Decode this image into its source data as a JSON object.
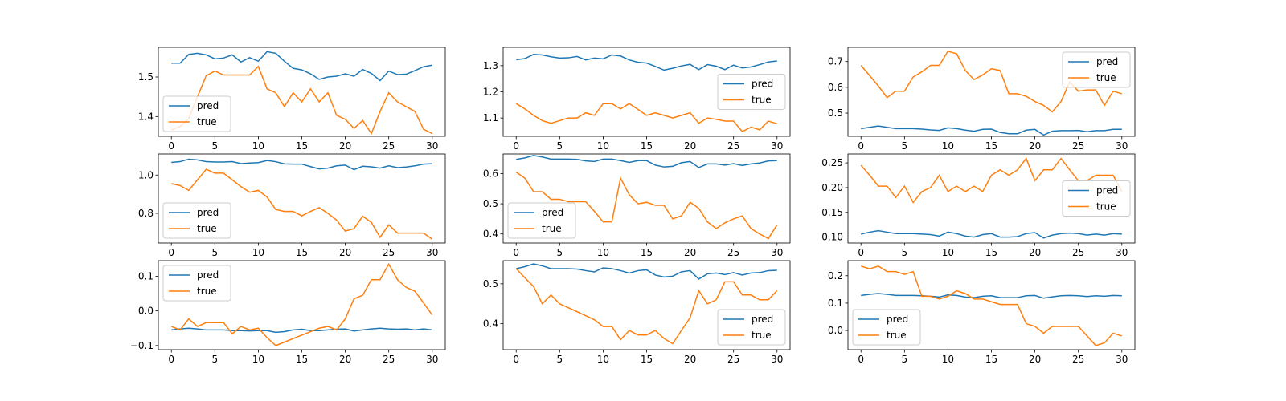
{
  "chart_data": [
    {
      "type": "line",
      "x": [
        0,
        1,
        2,
        3,
        4,
        5,
        6,
        7,
        8,
        9,
        10,
        11,
        12,
        13,
        14,
        15,
        16,
        17,
        18,
        19,
        20,
        21,
        22,
        23,
        24,
        25,
        26,
        27,
        28,
        29,
        30
      ],
      "ylim": [
        1.35,
        1.575
      ],
      "xticks": [
        0,
        5,
        10,
        15,
        20,
        25,
        30
      ],
      "yticks": [
        1.4,
        1.5
      ],
      "ytick_labels": [
        "1.4",
        "1.5"
      ],
      "legend_loc": "lower left",
      "series": [
        {
          "name": "pred",
          "color": "#1f77b4",
          "values": [
            1.535,
            1.535,
            1.557,
            1.56,
            1.556,
            1.546,
            1.548,
            1.556,
            1.538,
            1.549,
            1.54,
            1.564,
            1.56,
            1.54,
            1.522,
            1.518,
            1.508,
            1.494,
            1.5,
            1.502,
            1.508,
            1.502,
            1.519,
            1.509,
            1.491,
            1.515,
            1.506,
            1.507,
            1.516,
            1.526,
            1.53
          ]
        },
        {
          "name": "true",
          "color": "#ff7f0e",
          "values": [
            1.366,
            1.375,
            1.395,
            1.45,
            1.503,
            1.515,
            1.505,
            1.505,
            1.505,
            1.505,
            1.527,
            1.47,
            1.46,
            1.425,
            1.46,
            1.437,
            1.47,
            1.437,
            1.46,
            1.403,
            1.393,
            1.37,
            1.39,
            1.357,
            1.413,
            1.46,
            1.437,
            1.425,
            1.413,
            1.368,
            1.357
          ]
        }
      ]
    },
    {
      "type": "line",
      "x": [
        0,
        1,
        2,
        3,
        4,
        5,
        6,
        7,
        8,
        9,
        10,
        11,
        12,
        13,
        14,
        15,
        16,
        17,
        18,
        19,
        20,
        21,
        22,
        23,
        24,
        25,
        26,
        27,
        28,
        29,
        30
      ],
      "ylim": [
        1.03,
        1.37
      ],
      "xticks": [
        0,
        5,
        10,
        15,
        20,
        25,
        30
      ],
      "yticks": [
        1.1,
        1.2,
        1.3
      ],
      "ytick_labels": [
        "1.1",
        "1.2",
        "1.3"
      ],
      "legend_loc": "center right",
      "series": [
        {
          "name": "pred",
          "color": "#1f77b4",
          "values": [
            1.323,
            1.327,
            1.343,
            1.341,
            1.334,
            1.329,
            1.33,
            1.335,
            1.322,
            1.329,
            1.326,
            1.341,
            1.337,
            1.322,
            1.313,
            1.31,
            1.297,
            1.283,
            1.29,
            1.299,
            1.305,
            1.285,
            1.304,
            1.298,
            1.285,
            1.302,
            1.291,
            1.295,
            1.304,
            1.314,
            1.318
          ]
        },
        {
          "name": "true",
          "color": "#ff7f0e",
          "values": [
            1.155,
            1.135,
            1.11,
            1.09,
            1.08,
            1.09,
            1.1,
            1.1,
            1.12,
            1.11,
            1.155,
            1.155,
            1.135,
            1.155,
            1.133,
            1.11,
            1.12,
            1.11,
            1.1,
            1.11,
            1.12,
            1.08,
            1.1,
            1.095,
            1.088,
            1.088,
            1.048,
            1.065,
            1.055,
            1.088,
            1.078
          ]
        }
      ]
    },
    {
      "type": "line",
      "x": [
        0,
        1,
        2,
        3,
        4,
        5,
        6,
        7,
        8,
        9,
        10,
        11,
        12,
        13,
        14,
        15,
        16,
        17,
        18,
        19,
        20,
        21,
        22,
        23,
        24,
        25,
        26,
        27,
        28,
        29,
        30
      ],
      "ylim": [
        0.41,
        0.755
      ],
      "xticks": [
        0,
        5,
        10,
        15,
        20,
        25,
        30
      ],
      "yticks": [
        0.5,
        0.6,
        0.7
      ],
      "ytick_labels": [
        "0.5",
        "0.6",
        "0.7"
      ],
      "legend_loc": "upper right",
      "series": [
        {
          "name": "pred",
          "color": "#1f77b4",
          "values": [
            0.44,
            0.445,
            0.45,
            0.445,
            0.44,
            0.44,
            0.44,
            0.438,
            0.435,
            0.433,
            0.443,
            0.44,
            0.434,
            0.43,
            0.437,
            0.438,
            0.425,
            0.42,
            0.42,
            0.434,
            0.437,
            0.415,
            0.43,
            0.432,
            0.432,
            0.433,
            0.428,
            0.432,
            0.432,
            0.437,
            0.437
          ]
        },
        {
          "name": "true",
          "color": "#ff7f0e",
          "values": [
            0.685,
            0.645,
            0.605,
            0.56,
            0.585,
            0.585,
            0.64,
            0.66,
            0.685,
            0.685,
            0.74,
            0.73,
            0.665,
            0.63,
            0.648,
            0.672,
            0.665,
            0.575,
            0.575,
            0.565,
            0.545,
            0.53,
            0.505,
            0.545,
            0.62,
            0.585,
            0.59,
            0.59,
            0.53,
            0.585,
            0.575
          ]
        }
      ]
    },
    {
      "type": "line",
      "x": [
        0,
        1,
        2,
        3,
        4,
        5,
        6,
        7,
        8,
        9,
        10,
        11,
        12,
        13,
        14,
        15,
        16,
        17,
        18,
        19,
        20,
        21,
        22,
        23,
        24,
        25,
        26,
        27,
        28,
        29,
        30
      ],
      "ylim": [
        0.645,
        1.11
      ],
      "xticks": [
        0,
        5,
        10,
        15,
        20,
        25,
        30
      ],
      "yticks": [
        0.8,
        1.0
      ],
      "ytick_labels": [
        "0.8",
        "1.0"
      ],
      "legend_loc": "lower left",
      "series": [
        {
          "name": "pred",
          "color": "#1f77b4",
          "values": [
            1.066,
            1.07,
            1.083,
            1.079,
            1.07,
            1.068,
            1.068,
            1.07,
            1.06,
            1.063,
            1.065,
            1.076,
            1.07,
            1.058,
            1.057,
            1.057,
            1.044,
            1.032,
            1.036,
            1.048,
            1.052,
            1.028,
            1.046,
            1.043,
            1.036,
            1.048,
            1.039,
            1.042,
            1.048,
            1.057,
            1.059
          ]
        },
        {
          "name": "true",
          "color": "#ff7f0e",
          "values": [
            0.955,
            0.945,
            0.92,
            0.975,
            1.03,
            1.01,
            1.01,
            0.975,
            0.94,
            0.91,
            0.92,
            0.885,
            0.82,
            0.81,
            0.81,
            0.787,
            0.81,
            0.83,
            0.8,
            0.765,
            0.707,
            0.72,
            0.785,
            0.753,
            0.675,
            0.74,
            0.697,
            0.697,
            0.697,
            0.697,
            0.665
          ]
        }
      ]
    },
    {
      "type": "line",
      "x": [
        0,
        1,
        2,
        3,
        4,
        5,
        6,
        7,
        8,
        9,
        10,
        11,
        12,
        13,
        14,
        15,
        16,
        17,
        18,
        19,
        20,
        21,
        22,
        23,
        24,
        25,
        26,
        27,
        28,
        29,
        30
      ],
      "ylim": [
        0.37,
        0.665
      ],
      "xticks": [
        0,
        5,
        10,
        15,
        20,
        25,
        30
      ],
      "yticks": [
        0.4,
        0.5,
        0.6
      ],
      "ytick_labels": [
        "0.4",
        "0.5",
        "0.6"
      ],
      "legend_loc": "lower left",
      "series": [
        {
          "name": "pred",
          "color": "#1f77b4",
          "values": [
            0.647,
            0.652,
            0.66,
            0.655,
            0.648,
            0.648,
            0.648,
            0.647,
            0.642,
            0.64,
            0.648,
            0.648,
            0.643,
            0.637,
            0.643,
            0.643,
            0.628,
            0.622,
            0.624,
            0.636,
            0.64,
            0.62,
            0.632,
            0.632,
            0.628,
            0.633,
            0.627,
            0.632,
            0.635,
            0.642,
            0.643
          ]
        },
        {
          "name": "true",
          "color": "#ff7f0e",
          "values": [
            0.605,
            0.585,
            0.54,
            0.54,
            0.515,
            0.515,
            0.507,
            0.507,
            0.507,
            0.475,
            0.44,
            0.44,
            0.585,
            0.53,
            0.5,
            0.505,
            0.495,
            0.495,
            0.45,
            0.46,
            0.505,
            0.485,
            0.44,
            0.418,
            0.437,
            0.45,
            0.46,
            0.418,
            0.4,
            0.385,
            0.43
          ]
        }
      ]
    },
    {
      "type": "line",
      "x": [
        0,
        1,
        2,
        3,
        4,
        5,
        6,
        7,
        8,
        9,
        10,
        11,
        12,
        13,
        14,
        15,
        16,
        17,
        18,
        19,
        20,
        21,
        22,
        23,
        24,
        25,
        26,
        27,
        28,
        29,
        30
      ],
      "ylim": [
        0.088,
        0.268
      ],
      "xticks": [
        0,
        5,
        10,
        15,
        20,
        25,
        30
      ],
      "yticks": [
        0.1,
        0.15,
        0.2,
        0.25
      ],
      "ytick_labels": [
        "0.10",
        "0.15",
        "0.20",
        "0.25"
      ],
      "legend_loc": "center right",
      "series": [
        {
          "name": "pred",
          "color": "#1f77b4",
          "values": [
            0.106,
            0.11,
            0.113,
            0.11,
            0.107,
            0.107,
            0.107,
            0.106,
            0.105,
            0.102,
            0.11,
            0.107,
            0.102,
            0.1,
            0.105,
            0.107,
            0.1,
            0.1,
            0.101,
            0.107,
            0.109,
            0.098,
            0.104,
            0.107,
            0.108,
            0.107,
            0.104,
            0.106,
            0.104,
            0.107,
            0.106
          ]
        },
        {
          "name": "true",
          "color": "#ff7f0e",
          "values": [
            0.245,
            0.225,
            0.203,
            0.203,
            0.18,
            0.203,
            0.17,
            0.192,
            0.2,
            0.225,
            0.192,
            0.203,
            0.192,
            0.203,
            0.192,
            0.225,
            0.236,
            0.225,
            0.236,
            0.259,
            0.214,
            0.236,
            0.236,
            0.259,
            0.236,
            0.214,
            0.214,
            0.225,
            0.225,
            0.225,
            0.192
          ]
        }
      ]
    },
    {
      "type": "line",
      "x": [
        0,
        1,
        2,
        3,
        4,
        5,
        6,
        7,
        8,
        9,
        10,
        11,
        12,
        13,
        14,
        15,
        16,
        17,
        18,
        19,
        20,
        21,
        22,
        23,
        24,
        25,
        26,
        27,
        28,
        29,
        30
      ],
      "ylim": [
        -0.112,
        0.145
      ],
      "xticks": [
        0,
        5,
        10,
        15,
        20,
        25,
        30
      ],
      "yticks": [
        -0.1,
        0.0,
        0.1
      ],
      "ytick_labels": [
        "−0.1",
        "0.0",
        "0.1"
      ],
      "legend_loc": "upper left",
      "series": [
        {
          "name": "pred",
          "color": "#1f77b4",
          "values": [
            -0.055,
            -0.052,
            -0.05,
            -0.052,
            -0.055,
            -0.055,
            -0.055,
            -0.057,
            -0.057,
            -0.058,
            -0.057,
            -0.057,
            -0.062,
            -0.06,
            -0.055,
            -0.053,
            -0.057,
            -0.057,
            -0.055,
            -0.053,
            -0.052,
            -0.058,
            -0.055,
            -0.052,
            -0.05,
            -0.052,
            -0.053,
            -0.052,
            -0.055,
            -0.052,
            -0.055
          ]
        },
        {
          "name": "true",
          "color": "#ff7f0e",
          "values": [
            -0.045,
            -0.055,
            -0.023,
            -0.045,
            -0.034,
            -0.034,
            -0.034,
            -0.066,
            -0.045,
            -0.055,
            -0.05,
            -0.077,
            -0.1,
            -0.09,
            -0.08,
            -0.07,
            -0.06,
            -0.05,
            -0.045,
            -0.055,
            -0.023,
            0.035,
            0.045,
            0.09,
            0.09,
            0.135,
            0.09,
            0.068,
            0.057,
            0.023,
            -0.012
          ]
        }
      ]
    },
    {
      "type": "line",
      "x": [
        0,
        1,
        2,
        3,
        4,
        5,
        6,
        7,
        8,
        9,
        10,
        11,
        12,
        13,
        14,
        15,
        16,
        17,
        18,
        19,
        20,
        21,
        22,
        23,
        24,
        25,
        26,
        27,
        28,
        29,
        30
      ],
      "ylim": [
        0.335,
        0.558
      ],
      "xticks": [
        0,
        5,
        10,
        15,
        20,
        25,
        30
      ],
      "yticks": [
        0.4,
        0.5
      ],
      "ytick_labels": [
        "0.4",
        "0.5"
      ],
      "legend_loc": "lower right",
      "series": [
        {
          "name": "pred",
          "color": "#1f77b4",
          "values": [
            0.538,
            0.543,
            0.55,
            0.545,
            0.538,
            0.538,
            0.538,
            0.537,
            0.533,
            0.53,
            0.54,
            0.538,
            0.533,
            0.527,
            0.533,
            0.535,
            0.522,
            0.517,
            0.519,
            0.53,
            0.533,
            0.512,
            0.525,
            0.527,
            0.523,
            0.528,
            0.522,
            0.527,
            0.528,
            0.533,
            0.534
          ]
        },
        {
          "name": "true",
          "color": "#ff7f0e",
          "values": [
            0.538,
            0.515,
            0.493,
            0.45,
            0.472,
            0.45,
            0.44,
            0.43,
            0.42,
            0.41,
            0.393,
            0.393,
            0.36,
            0.383,
            0.372,
            0.372,
            0.383,
            0.363,
            0.35,
            0.383,
            0.415,
            0.483,
            0.45,
            0.46,
            0.505,
            0.505,
            0.472,
            0.472,
            0.46,
            0.46,
            0.483
          ]
        }
      ]
    },
    {
      "type": "line",
      "x": [
        0,
        1,
        2,
        3,
        4,
        5,
        6,
        7,
        8,
        9,
        10,
        11,
        12,
        13,
        14,
        15,
        16,
        17,
        18,
        19,
        20,
        21,
        22,
        23,
        24,
        25,
        26,
        27,
        28,
        29,
        30
      ],
      "ylim": [
        -0.07,
        0.255
      ],
      "xticks": [
        0,
        5,
        10,
        15,
        20,
        25,
        30
      ],
      "yticks": [
        0.0,
        0.1,
        0.2
      ],
      "ytick_labels": [
        "0.0",
        "0.1",
        "0.2"
      ],
      "legend_loc": "lower left",
      "series": [
        {
          "name": "pred",
          "color": "#1f77b4",
          "values": [
            0.128,
            0.132,
            0.135,
            0.132,
            0.128,
            0.128,
            0.128,
            0.127,
            0.125,
            0.122,
            0.13,
            0.128,
            0.122,
            0.12,
            0.125,
            0.127,
            0.12,
            0.12,
            0.12,
            0.127,
            0.128,
            0.118,
            0.123,
            0.127,
            0.128,
            0.127,
            0.124,
            0.127,
            0.125,
            0.128,
            0.127
          ]
        },
        {
          "name": "true",
          "color": "#ff7f0e",
          "values": [
            0.235,
            0.225,
            0.235,
            0.215,
            0.215,
            0.205,
            0.215,
            0.125,
            0.125,
            0.115,
            0.125,
            0.145,
            0.135,
            0.115,
            0.115,
            0.105,
            0.095,
            0.095,
            0.095,
            0.025,
            0.015,
            -0.01,
            0.015,
            0.015,
            0.015,
            0.015,
            -0.02,
            -0.055,
            -0.045,
            -0.01,
            -0.02
          ]
        }
      ]
    }
  ]
}
